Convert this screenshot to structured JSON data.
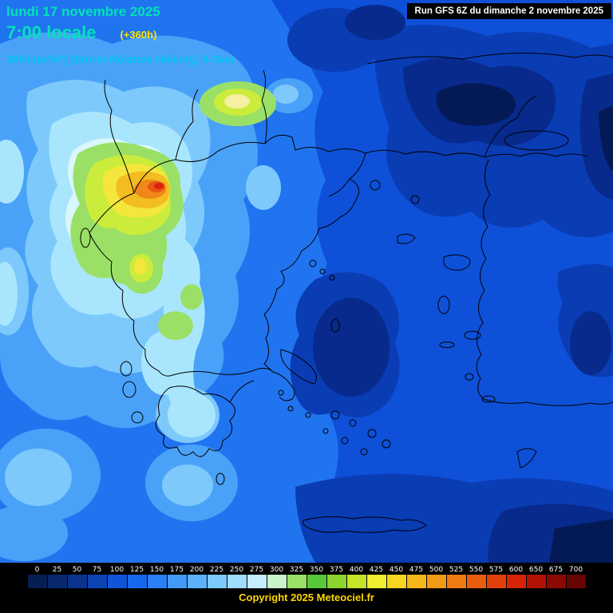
{
  "header": {
    "date_line": "lundi 17 novembre 2025",
    "time_line": "7:00 locale",
    "offset_label": "(+360h)",
    "param_label": "SRH (m²/s²) (Storm Relative Helicity) 0-3km",
    "run_info": "Run GFS 6Z du dimanche 2 novembre 2025"
  },
  "footer": {
    "copyright": "Copyright 2025 Meteociel.fr"
  },
  "legend": {
    "values": [
      "0",
      "25",
      "50",
      "75",
      "100",
      "125",
      "150",
      "175",
      "200",
      "225",
      "250",
      "275",
      "300",
      "325",
      "350",
      "375",
      "400",
      "425",
      "450",
      "475",
      "500",
      "525",
      "550",
      "575",
      "600",
      "650",
      "675",
      "700"
    ],
    "colors": [
      "#071e52",
      "#09296e",
      "#0b358c",
      "#0d44b4",
      "#1055d8",
      "#1668ee",
      "#2a80f6",
      "#429af8",
      "#5cb2fa",
      "#7cc9fb",
      "#9fdcfd",
      "#c4eefe",
      "#c9f4c9",
      "#9ae066",
      "#58c838",
      "#8cd430",
      "#c4e428",
      "#f0ee30",
      "#f6d620",
      "#f5b81c",
      "#f29a16",
      "#ee7c12",
      "#e95e0e",
      "#e2400a",
      "#d62408",
      "#b21206",
      "#8e0804",
      "#680402"
    ]
  },
  "colors": {
    "title_text": "#00e3b8",
    "offset_text": "#ffe400",
    "param_text": "#00c6f5",
    "run_text": "#ffffff",
    "run_bg": "#000000",
    "copyright_text": "#ffd700",
    "sea_base": "#2174f0"
  }
}
